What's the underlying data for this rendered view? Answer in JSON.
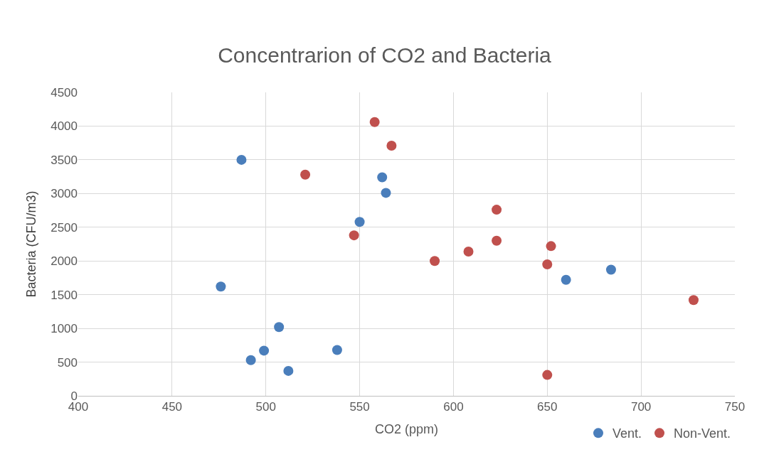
{
  "chart_data": {
    "type": "scatter",
    "title": "Concentrarion of CO2 and Bacteria",
    "xlabel": "CO2 (ppm)",
    "ylabel": "Bacteria (CFU/m3)",
    "xlim": [
      400,
      750
    ],
    "xticks": [
      400,
      450,
      500,
      550,
      600,
      650,
      700,
      750
    ],
    "ylim": [
      0,
      4500
    ],
    "yticks": [
      0,
      500,
      1000,
      1500,
      2000,
      2500,
      3000,
      3500,
      4000,
      4500
    ],
    "grid": true,
    "legend": "bottom right",
    "marker": "circle",
    "series": [
      {
        "name": "Vent.",
        "color": "#4a7ebb",
        "x": [
          487,
          476,
          507,
          499,
          492,
          512,
          538,
          550,
          562,
          564,
          660,
          684
        ],
        "values": [
          3500,
          1620,
          1020,
          670,
          530,
          370,
          680,
          2580,
          3240,
          3010,
          1720,
          1870
        ]
      },
      {
        "name": "Non-Vent.",
        "color": "#c0504d",
        "x": [
          558,
          567,
          521,
          547,
          590,
          608,
          623,
          623,
          652,
          650,
          728,
          650
        ],
        "values": [
          4060,
          3710,
          3280,
          2380,
          2000,
          2140,
          2760,
          2300,
          2220,
          1950,
          1420,
          310
        ]
      }
    ]
  }
}
